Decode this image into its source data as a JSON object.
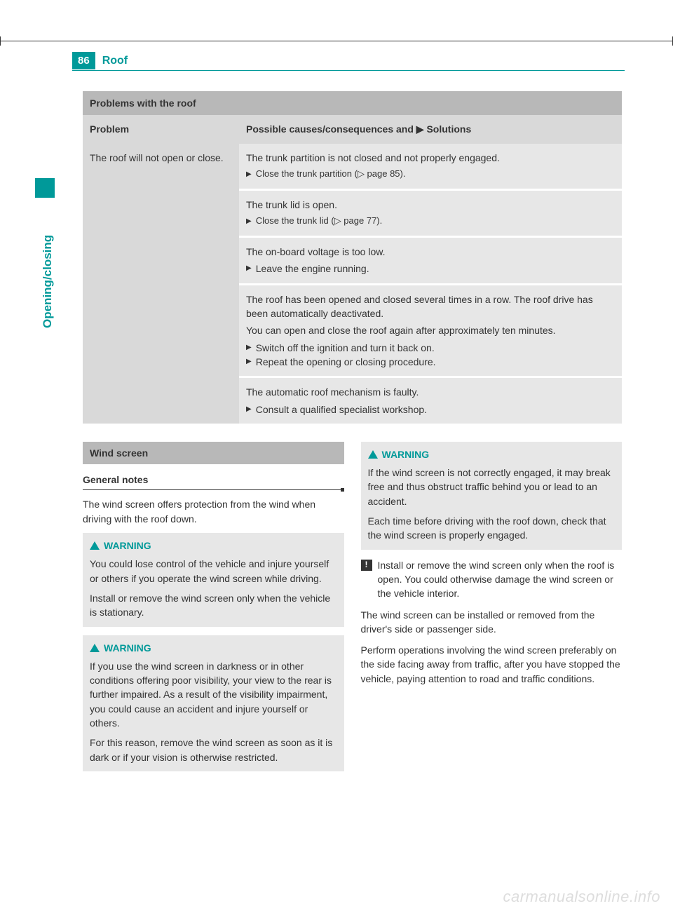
{
  "header": {
    "page_number": "86",
    "title": "Roof",
    "side_label": "Opening/closing"
  },
  "problems_section": {
    "bar_title": "Problems with the roof",
    "col_problem": "Problem",
    "col_solutions_prefix": "Possible causes/consequences and ",
    "col_solutions_suffix": " Solutions",
    "problem_text": "The roof will not open or close.",
    "cells": [
      {
        "lines": [
          "The trunk partition is not closed and not properly engaged."
        ],
        "actions": [
          "Close the trunk partition (▷ page 85)."
        ]
      },
      {
        "lines": [
          "The trunk lid is open."
        ],
        "actions": [
          "Close the trunk lid (▷ page 77)."
        ]
      },
      {
        "lines": [
          "The on-board voltage is too low."
        ],
        "actions": [
          "Leave the engine running."
        ]
      },
      {
        "lines": [
          "The roof has been opened and closed several times in a row. The roof drive has been automatically deactivated.",
          "You can open and close the roof again after approximately ten minutes."
        ],
        "actions": [
          "Switch off the ignition and turn it back on.",
          "Repeat the opening or closing procedure."
        ]
      },
      {
        "lines": [
          "The automatic roof mechanism is faulty."
        ],
        "actions": [
          "Consult a qualified specialist workshop."
        ]
      }
    ]
  },
  "wind_screen": {
    "bar_title": "Wind screen",
    "general_notes_heading": "General notes",
    "intro": "The wind screen offers protection from the wind when driving with the roof down.",
    "warning_label": "WARNING",
    "warn1": {
      "p1": "You could lose control of the vehicle and injure yourself or others if you operate the wind screen while driving.",
      "p2": "Install or remove the wind screen only when the vehicle is stationary."
    },
    "warn2": {
      "p1": "If you use the wind screen in darkness or in other conditions offering poor visibility, your view to the rear is further impaired. As a result of the visibility impairment, you could cause an accident and injure yourself or others.",
      "p2": "For this reason, remove the wind screen as soon as it is dark or if your vision is otherwise restricted."
    },
    "warn3": {
      "p1": "If the wind screen is not correctly engaged, it may break free and thus obstruct traffic behind you or lead to an accident.",
      "p2": "Each time before driving with the roof down, check that the wind screen is properly engaged."
    },
    "note_icon": "!",
    "note": "Install or remove the wind screen only when the roof is open. You could otherwise damage the wind screen or the vehicle interior.",
    "p_after1": "The wind screen can be installed or removed from the driver's side or passenger side.",
    "p_after2": "Perform operations involving the wind screen preferably on the side facing away from traffic, after you have stopped the vehicle, paying attention to road and traffic conditions."
  },
  "watermark": "carmanualsonline.info",
  "colors": {
    "teal": "#009999",
    "bar_grey": "#b8b8b8",
    "header_grey": "#d9d9d9",
    "cell_grey": "#e7e7e7"
  }
}
